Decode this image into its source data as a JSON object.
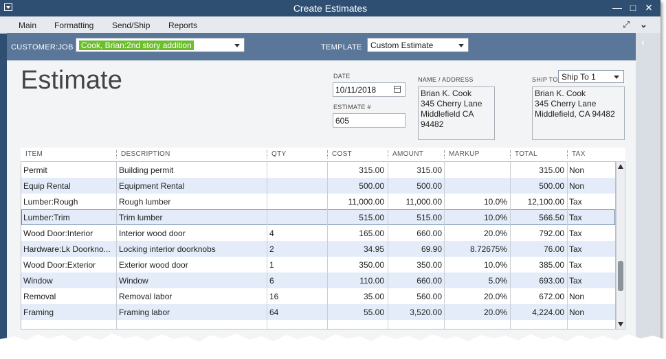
{
  "window": {
    "title": "Create Estimates"
  },
  "menubar": {
    "items": [
      "Main",
      "Formatting",
      "Send/Ship",
      "Reports"
    ]
  },
  "header": {
    "customer_job_label": "CUSTOMER:JOB",
    "customer_job_value": "Cook, Brian:2nd story addition",
    "template_label": "TEMPLATE",
    "template_value": "Custom Estimate"
  },
  "form": {
    "title": "Estimate",
    "date_label": "DATE",
    "date_value": "10/11/2018",
    "estimate_no_label": "ESTIMATE #",
    "estimate_no_value": "605",
    "name_address_label": "NAME / ADDRESS",
    "name_address_lines": [
      "Brian K. Cook",
      "345 Cherry Lane",
      "Middlefield CA 94482"
    ],
    "ship_to_label": "SHIP TO",
    "ship_to_select": "Ship To 1",
    "ship_to_lines": [
      "Brian K. Cook",
      "345 Cherry Lane",
      "Middlefield, CA 94482"
    ]
  },
  "table": {
    "columns": [
      "ITEM",
      "DESCRIPTION",
      "QTY",
      "COST",
      "AMOUNT",
      "MARKUP",
      "TOTAL",
      "TAX"
    ],
    "rows": [
      {
        "item": "Permit",
        "description": "Building permit",
        "qty": "",
        "cost": "315.00",
        "amount": "315.00",
        "markup": "",
        "total": "315.00",
        "tax": "Non"
      },
      {
        "item": "Equip Rental",
        "description": "Equipment Rental",
        "qty": "",
        "cost": "500.00",
        "amount": "500.00",
        "markup": "",
        "total": "500.00",
        "tax": "Non"
      },
      {
        "item": "Lumber:Rough",
        "description": "Rough lumber",
        "qty": "",
        "cost": "11,000.00",
        "amount": "11,000.00",
        "markup": "10.0%",
        "total": "12,100.00",
        "tax": "Tax"
      },
      {
        "item": "Lumber:Trim",
        "description": "Trim lumber",
        "qty": "",
        "cost": "515.00",
        "amount": "515.00",
        "markup": "10.0%",
        "total": "566.50",
        "tax": "Tax"
      },
      {
        "item": "Wood Door:Interior",
        "description": "Interior wood door",
        "qty": "4",
        "cost": "165.00",
        "amount": "660.00",
        "markup": "20.0%",
        "total": "792.00",
        "tax": "Tax"
      },
      {
        "item": "Hardware:Lk Doorkno...",
        "description": "Locking interior doorknobs",
        "qty": "2",
        "cost": "34.95",
        "amount": "69.90",
        "markup": "8.72675%",
        "total": "76.00",
        "tax": "Tax"
      },
      {
        "item": "Wood Door:Exterior",
        "description": "Exterior wood door",
        "qty": "1",
        "cost": "350.00",
        "amount": "350.00",
        "markup": "10.0%",
        "total": "385.00",
        "tax": "Tax"
      },
      {
        "item": "Window",
        "description": "Window",
        "qty": "6",
        "cost": "110.00",
        "amount": "660.00",
        "markup": "5.0%",
        "total": "693.00",
        "tax": "Tax"
      },
      {
        "item": "Removal",
        "description": "Removal labor",
        "qty": "16",
        "cost": "35.00",
        "amount": "560.00",
        "markup": "20.0%",
        "total": "672.00",
        "tax": "Non"
      },
      {
        "item": "Framing",
        "description": "Framing labor",
        "qty": "64",
        "cost": "55.00",
        "amount": "3,520.00",
        "markup": "20.0%",
        "total": "4,224.00",
        "tax": "Non"
      }
    ]
  },
  "colors": {
    "titlebar": "#2f4f72",
    "header_band": "#5a7799",
    "selected_job_highlight": "#6cbe2e",
    "alt_row": "#e3ecf8"
  }
}
